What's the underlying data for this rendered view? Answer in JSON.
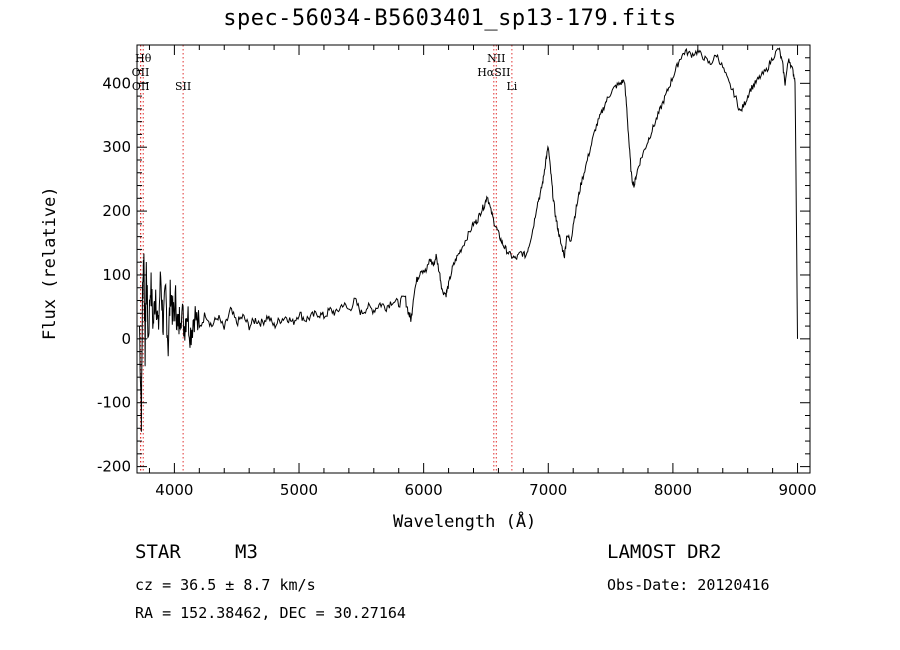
{
  "title": "spec-56034-B5603401_sp13-179.fits",
  "info": {
    "object_class": "STAR",
    "subclass": "M3",
    "cz": "cz = 36.5 ± 8.7 km/s",
    "coords": "RA = 152.38462, DEC =  30.27164",
    "survey": "LAMOST DR2",
    "obs_date": "Obs-Date: 20120416"
  },
  "chart_data": {
    "type": "line",
    "title": "spec-56034-B5603401_sp13-179.fits",
    "xlabel": "Wavelength (Å)",
    "ylabel": "Flux (relative)",
    "xlim": [
      3700,
      9100
    ],
    "ylim": [
      -210,
      460
    ],
    "x_ticks": [
      4000,
      5000,
      6000,
      7000,
      8000,
      9000
    ],
    "y_ticks": [
      -200,
      -100,
      0,
      100,
      200,
      300,
      400
    ],
    "grid": false,
    "series": [
      {
        "color": "#000000",
        "points": [
          [
            3720,
            20
          ],
          [
            3735,
            -120
          ],
          [
            3745,
            80
          ],
          [
            3755,
            130
          ],
          [
            3765,
            -20
          ],
          [
            3775,
            110
          ],
          [
            3790,
            0
          ],
          [
            3810,
            90
          ],
          [
            3830,
            20
          ],
          [
            3850,
            80
          ],
          [
            3870,
            10
          ],
          [
            3890,
            100
          ],
          [
            3910,
            20
          ],
          [
            3930,
            70
          ],
          [
            3950,
            -10
          ],
          [
            3970,
            80
          ],
          [
            3990,
            30
          ],
          [
            4010,
            60
          ],
          [
            4030,
            10
          ],
          [
            4050,
            50
          ],
          [
            4080,
            20
          ],
          [
            4100,
            45
          ],
          [
            4130,
            10
          ],
          [
            4160,
            40
          ],
          [
            4200,
            15
          ],
          [
            4250,
            40
          ],
          [
            4300,
            20
          ],
          [
            4350,
            35
          ],
          [
            4400,
            15
          ],
          [
            4450,
            45
          ],
          [
            4500,
            25
          ],
          [
            4550,
            35
          ],
          [
            4600,
            20
          ],
          [
            4650,
            30
          ],
          [
            4700,
            25
          ],
          [
            4750,
            35
          ],
          [
            4800,
            20
          ],
          [
            4850,
            30
          ],
          [
            4900,
            35
          ],
          [
            4950,
            25
          ],
          [
            5000,
            40
          ],
          [
            5050,
            30
          ],
          [
            5100,
            35
          ],
          [
            5150,
            40
          ],
          [
            5200,
            35
          ],
          [
            5250,
            45
          ],
          [
            5300,
            40
          ],
          [
            5350,
            55
          ],
          [
            5400,
            45
          ],
          [
            5450,
            60
          ],
          [
            5500,
            40
          ],
          [
            5550,
            50
          ],
          [
            5600,
            45
          ],
          [
            5650,
            55
          ],
          [
            5700,
            50
          ],
          [
            5750,
            60
          ],
          [
            5800,
            55
          ],
          [
            5850,
            65
          ],
          [
            5880,
            40
          ],
          [
            5900,
            30
          ],
          [
            5920,
            70
          ],
          [
            5950,
            95
          ],
          [
            5980,
            110
          ],
          [
            6020,
            105
          ],
          [
            6050,
            125
          ],
          [
            6080,
            115
          ],
          [
            6100,
            130
          ],
          [
            6130,
            100
          ],
          [
            6150,
            75
          ],
          [
            6180,
            70
          ],
          [
            6200,
            85
          ],
          [
            6230,
            110
          ],
          [
            6260,
            125
          ],
          [
            6300,
            140
          ],
          [
            6350,
            160
          ],
          [
            6400,
            180
          ],
          [
            6430,
            185
          ],
          [
            6460,
            200
          ],
          [
            6490,
            210
          ],
          [
            6510,
            225
          ],
          [
            6540,
            200
          ],
          [
            6570,
            180
          ],
          [
            6600,
            165
          ],
          [
            6630,
            150
          ],
          [
            6660,
            140
          ],
          [
            6700,
            130
          ],
          [
            6740,
            125
          ],
          [
            6780,
            135
          ],
          [
            6820,
            130
          ],
          [
            6850,
            150
          ],
          [
            6880,
            175
          ],
          [
            6910,
            210
          ],
          [
            6940,
            230
          ],
          [
            6960,
            250
          ],
          [
            6980,
            280
          ],
          [
            7000,
            300
          ],
          [
            7020,
            260
          ],
          [
            7040,
            220
          ],
          [
            7060,
            190
          ],
          [
            7080,
            170
          ],
          [
            7100,
            150
          ],
          [
            7130,
            130
          ],
          [
            7150,
            165
          ],
          [
            7180,
            150
          ],
          [
            7200,
            180
          ],
          [
            7230,
            210
          ],
          [
            7260,
            240
          ],
          [
            7300,
            270
          ],
          [
            7340,
            300
          ],
          [
            7380,
            330
          ],
          [
            7420,
            350
          ],
          [
            7460,
            370
          ],
          [
            7500,
            385
          ],
          [
            7540,
            395
          ],
          [
            7580,
            400
          ],
          [
            7610,
            405
          ],
          [
            7630,
            360
          ],
          [
            7650,
            300
          ],
          [
            7670,
            250
          ],
          [
            7690,
            240
          ],
          [
            7710,
            260
          ],
          [
            7740,
            280
          ],
          [
            7780,
            300
          ],
          [
            7820,
            320
          ],
          [
            7860,
            340
          ],
          [
            7900,
            360
          ],
          [
            7940,
            380
          ],
          [
            7980,
            400
          ],
          [
            8020,
            420
          ],
          [
            8060,
            440
          ],
          [
            8100,
            450
          ],
          [
            8150,
            445
          ],
          [
            8200,
            450
          ],
          [
            8250,
            440
          ],
          [
            8300,
            430
          ],
          [
            8350,
            445
          ],
          [
            8400,
            425
          ],
          [
            8450,
            400
          ],
          [
            8500,
            380
          ],
          [
            8540,
            355
          ],
          [
            8580,
            370
          ],
          [
            8620,
            390
          ],
          [
            8660,
            400
          ],
          [
            8700,
            410
          ],
          [
            8750,
            420
          ],
          [
            8800,
            440
          ],
          [
            8850,
            455
          ],
          [
            8880,
            430
          ],
          [
            8900,
            400
          ],
          [
            8930,
            440
          ],
          [
            8960,
            420
          ],
          [
            8980,
            405
          ],
          [
            9000,
            0
          ]
        ]
      }
    ],
    "line_markers": [
      {
        "label": "Hθ",
        "x": 3750,
        "row": 0
      },
      {
        "label": "OII",
        "x": 3728,
        "row": 1
      },
      {
        "label": "OII",
        "x": 3730,
        "row": 2
      },
      {
        "label": "SII",
        "x": 4070,
        "row": 2
      },
      {
        "label": "NII",
        "x": 6583,
        "row": 0
      },
      {
        "label": "HαSII",
        "x": 6563,
        "row": 1
      },
      {
        "label": "Li",
        "x": 6708,
        "row": 2
      }
    ],
    "marker_color": "#e03030"
  }
}
